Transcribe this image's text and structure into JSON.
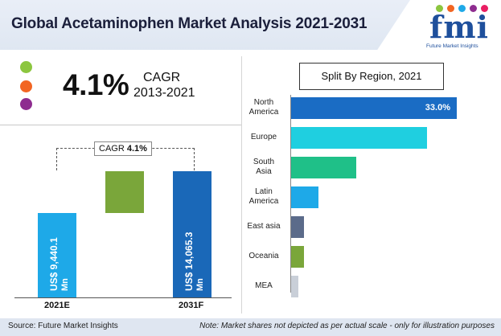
{
  "header": {
    "title": "Global Acetaminophen Market Analysis 2021-2031"
  },
  "logo": {
    "text": "fmi",
    "subtext": "Future Market Insights"
  },
  "cagr": {
    "value": "4.1%",
    "label": "CAGR",
    "period": "2013-2021",
    "dot_colors": [
      "#8cc63f",
      "#f26522",
      "#8e2c8f"
    ]
  },
  "chart_data": [
    {
      "type": "bar",
      "categories": [
        "2021E",
        "2031F"
      ],
      "values": [
        9440.1,
        14065.3
      ],
      "value_labels": [
        "US$ 9,440.1 Mn",
        "US$ 14,065.3 Mn"
      ],
      "unit_prefix": "US$",
      "value_texts": [
        "9,440.1",
        "14,065.3"
      ],
      "unit": "Mn",
      "cagr_tag": {
        "label": "CAGR",
        "value": "4.1%"
      },
      "colors": [
        "#1ea9e8",
        "#1a68b8",
        "#7aa63a"
      ]
    },
    {
      "type": "bar",
      "orientation": "horizontal",
      "title": "Split By Region, 2021",
      "categories": [
        "North America",
        "Europe",
        "South Asia",
        "Latin America",
        "East asia",
        "Oceania",
        "MEA"
      ],
      "category_lines": [
        [
          "North",
          "America"
        ],
        [
          "Europe"
        ],
        [
          "South",
          "Asia"
        ],
        [
          "Latin",
          "America"
        ],
        [
          "East asia"
        ],
        [
          "Oceania"
        ],
        [
          "MEA"
        ]
      ],
      "values": [
        33.0,
        27.0,
        13.0,
        5.5,
        2.5,
        2.5,
        1.5
      ],
      "labeled": {
        "index": 0,
        "text": "33.0%"
      },
      "colors": [
        "#1a6cc4",
        "#1fcfe0",
        "#1fc088",
        "#1ea9e8",
        "#5b6b8a",
        "#7aa63a",
        "#c9cfd8"
      ]
    }
  ],
  "footer": {
    "source": "Source: Future Market Insights",
    "note": "Note: Market shares not depicted as per actual scale - only for illustration purposes"
  }
}
